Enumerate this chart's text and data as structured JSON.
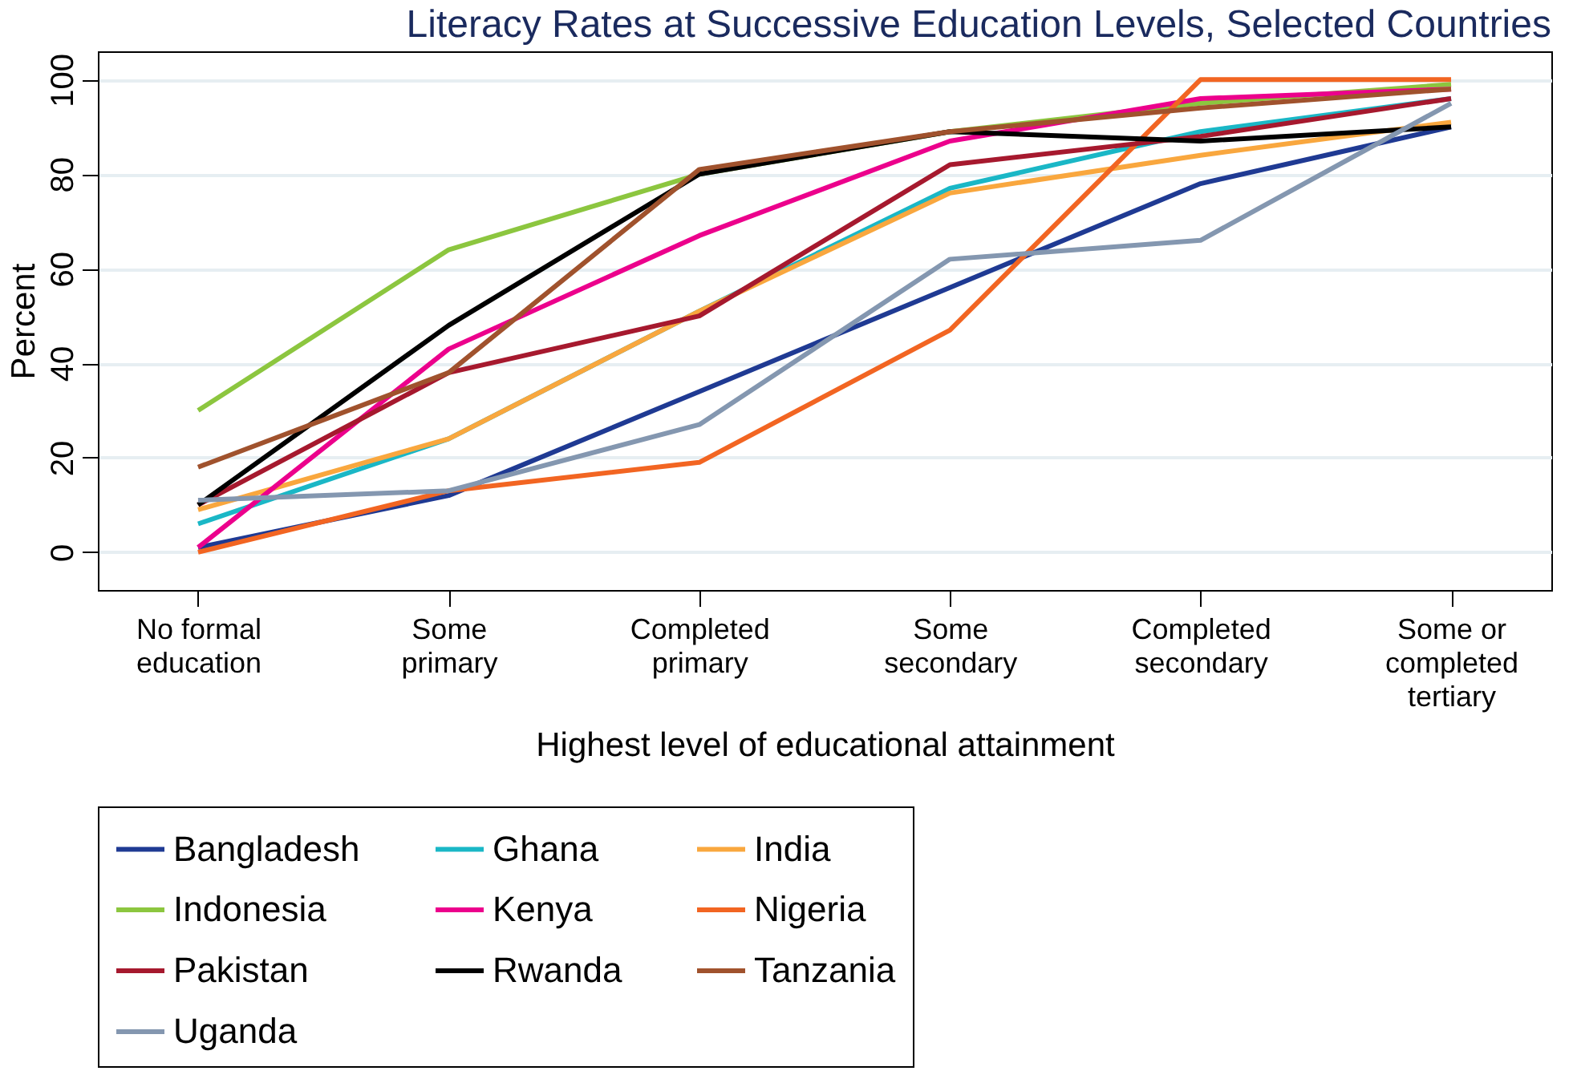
{
  "chart_data": {
    "type": "line",
    "title": "Literacy Rates at Successive Education Levels, Selected Countries",
    "xlabel": "Highest level of educational attainment",
    "ylabel": "Percent",
    "categories": [
      "No formal\neducation",
      "Some\nprimary",
      "Completed\nprimary",
      "Some\nsecondary",
      "Completed\nsecondary",
      "Some or\ncompleted\ntertiary"
    ],
    "series": [
      {
        "name": "Bangladesh",
        "color": "#1f3a93",
        "values": [
          1,
          12,
          34,
          56,
          78,
          90
        ]
      },
      {
        "name": "Ghana",
        "color": "#1ab7c6",
        "values": [
          6,
          24,
          51,
          77,
          89,
          96
        ]
      },
      {
        "name": "India",
        "color": "#f9a73e",
        "values": [
          9,
          24,
          51,
          76,
          84,
          91
        ]
      },
      {
        "name": "Indonesia",
        "color": "#8cc63f",
        "values": [
          30,
          64,
          80,
          89,
          95,
          99
        ]
      },
      {
        "name": "Kenya",
        "color": "#ec008c",
        "values": [
          1,
          43,
          67,
          87,
          96,
          98
        ]
      },
      {
        "name": "Nigeria",
        "color": "#f26522",
        "values": [
          0,
          13,
          19,
          47,
          100,
          100
        ]
      },
      {
        "name": "Pakistan",
        "color": "#a6192e",
        "values": [
          10,
          38,
          50,
          82,
          88,
          96
        ]
      },
      {
        "name": "Rwanda",
        "color": "#000000",
        "values": [
          10,
          48,
          80,
          89,
          87,
          90
        ]
      },
      {
        "name": "Tanzania",
        "color": "#a0522d",
        "values": [
          18,
          38,
          81,
          89,
          94,
          98
        ]
      },
      {
        "name": "Uganda",
        "color": "#8497b0",
        "values": [
          11,
          13,
          27,
          62,
          66,
          95
        ]
      }
    ],
    "ylim": [
      -8,
      106
    ],
    "yticks": [
      0,
      20,
      40,
      60,
      80,
      100
    ],
    "grid": "y",
    "legend": "bottom",
    "line_style": "solid"
  }
}
